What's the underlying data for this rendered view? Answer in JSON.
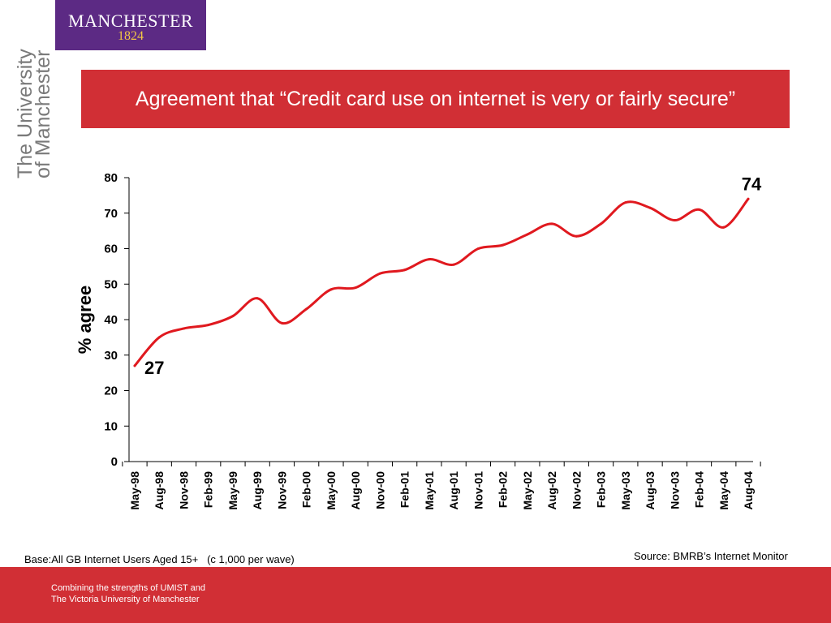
{
  "logo": {
    "wordmark": "MANCHESTER",
    "year": "1824"
  },
  "side_wordmark": {
    "line1": "The University",
    "line2": "of Manchester"
  },
  "title": "Agreement that “Credit card use on internet is very or fairly secure”",
  "footer": {
    "base_note": "Base:All GB Internet Users Aged 15+   (c 1,000 per wave)",
    "source": "Source: BMRB’s Internet Monitor",
    "line1": "Combining the strengths of UMIST and",
    "line2": "The Victoria University of Manchester"
  },
  "colors": {
    "brand_purple": "#5c2a84",
    "accent_red": "#d12f35",
    "series_red": "#e0191f",
    "logo_gold": "#f2c744"
  },
  "chart_data": {
    "type": "line",
    "title": "",
    "xlabel": "",
    "ylabel": "% agree",
    "ylim": [
      0,
      80
    ],
    "yticks": [
      0,
      10,
      20,
      30,
      40,
      50,
      60,
      70,
      80
    ],
    "categories": [
      "May-98",
      "Aug-98",
      "Nov-98",
      "Feb-99",
      "May-99",
      "Aug-99",
      "Nov-99",
      "Feb-00",
      "May-00",
      "Aug-00",
      "Nov-00",
      "Feb-01",
      "May-01",
      "Aug-01",
      "Nov-01",
      "Feb-02",
      "May-02",
      "Aug-02",
      "Nov-02",
      "Feb-03",
      "May-03",
      "Aug-03",
      "Nov-03",
      "Feb-04",
      "May-04",
      "Aug-04"
    ],
    "series": [
      {
        "name": "",
        "values": [
          27,
          35,
          37.5,
          38.5,
          41,
          46,
          39,
          43,
          48.5,
          49,
          53,
          54,
          57,
          55.5,
          60,
          61,
          64,
          67,
          63.5,
          67,
          73,
          71.5,
          68,
          71,
          66,
          74
        ]
      }
    ],
    "annotations": [
      {
        "text": "27",
        "category": "May-98",
        "value": 27
      },
      {
        "text": "74",
        "category": "Aug-04",
        "value": 74
      }
    ],
    "grid": false,
    "legend": "none"
  }
}
